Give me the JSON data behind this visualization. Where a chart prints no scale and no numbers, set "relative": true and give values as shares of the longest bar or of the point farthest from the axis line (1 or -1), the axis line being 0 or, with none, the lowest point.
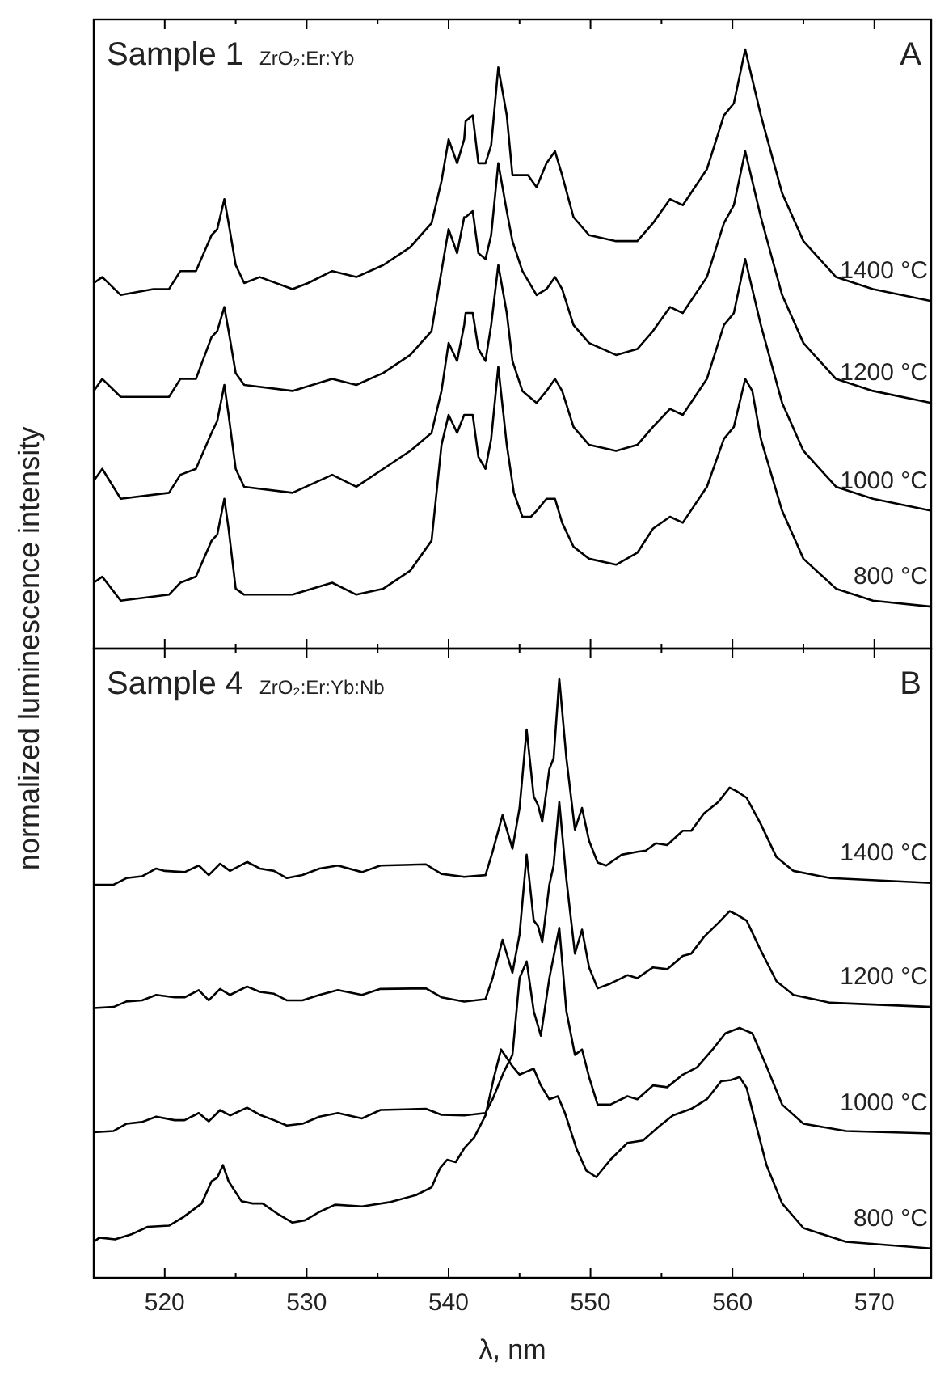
{
  "chart_data": [
    {
      "type": "line",
      "title": "Sample 1",
      "subtitle": "ZrO₂:Er:Yb",
      "ylabel": "normalized luminescence intensity",
      "annotations": [
        "A"
      ],
      "relative": true,
      "xlim": [
        515,
        574
      ],
      "xticks": [
        {
          "value": 515,
          "label": null
        },
        520,
        {
          "value": 525,
          "label": null
        },
        530,
        {
          "value": 535,
          "label": null
        },
        540,
        {
          "value": 545,
          "label": null
        },
        550,
        {
          "value": 555,
          "label": null
        },
        560,
        {
          "value": 565,
          "label": null
        },
        570
      ],
      "tick_labels": false,
      "series": [
        {
          "name": "1400 °C",
          "color": "#000000",
          "x": [
            515.0,
            515.6,
            516.9,
            519.2,
            520.3,
            521.1,
            522.2,
            523.3,
            523.7,
            524.2,
            524.5,
            525.0,
            525.6,
            526.7,
            529.0,
            530.1,
            531.8,
            533.5,
            535.4,
            537.3,
            538.8,
            539.5,
            540.0,
            540.6,
            541.1,
            541.2,
            541.7,
            542.1,
            542.6,
            543.0,
            543.5,
            544.1,
            544.5,
            545.2,
            545.6,
            546.2,
            546.9,
            547.5,
            548.0,
            548.8,
            549.9,
            551.8,
            553.3,
            554.4,
            555.6,
            556.5,
            558.2,
            559.4,
            560.1,
            560.9,
            561.4,
            562.0,
            563.5,
            565.0,
            567.3,
            569.9,
            574.0
          ],
          "values": [
            0.61,
            0.62,
            0.59,
            0.6,
            0.6,
            0.63,
            0.63,
            0.69,
            0.7,
            0.75,
            0.71,
            0.64,
            0.61,
            0.62,
            0.6,
            0.61,
            0.63,
            0.62,
            0.64,
            0.67,
            0.71,
            0.78,
            0.85,
            0.81,
            0.85,
            0.88,
            0.89,
            0.81,
            0.81,
            0.84,
            0.97,
            0.89,
            0.79,
            0.79,
            0.79,
            0.77,
            0.81,
            0.83,
            0.79,
            0.72,
            0.69,
            0.68,
            0.68,
            0.71,
            0.75,
            0.74,
            0.8,
            0.89,
            0.91,
            1.0,
            0.95,
            0.89,
            0.76,
            0.68,
            0.62,
            0.6,
            0.58
          ]
        },
        {
          "name": "1200 °C",
          "color": "#000000",
          "x": [
            515.0,
            515.6,
            516.9,
            520.3,
            521.1,
            522.2,
            523.3,
            523.7,
            524.2,
            524.5,
            525.0,
            525.6,
            529.0,
            531.8,
            533.5,
            535.4,
            537.3,
            538.8,
            539.5,
            540.0,
            540.6,
            541.1,
            541.2,
            541.7,
            542.1,
            542.6,
            543.0,
            543.5,
            544.1,
            544.5,
            545.2,
            546.2,
            546.9,
            547.5,
            548.0,
            548.8,
            549.9,
            551.8,
            553.3,
            554.4,
            555.6,
            556.5,
            558.2,
            559.4,
            560.1,
            560.9,
            561.4,
            562.0,
            563.5,
            565.0,
            567.3,
            569.9,
            574.0
          ],
          "values": [
            0.43,
            0.45,
            0.42,
            0.42,
            0.45,
            0.45,
            0.52,
            0.53,
            0.57,
            0.53,
            0.46,
            0.44,
            0.43,
            0.45,
            0.44,
            0.46,
            0.49,
            0.53,
            0.63,
            0.7,
            0.66,
            0.72,
            0.72,
            0.73,
            0.66,
            0.65,
            0.69,
            0.81,
            0.73,
            0.68,
            0.63,
            0.59,
            0.6,
            0.62,
            0.6,
            0.54,
            0.51,
            0.49,
            0.5,
            0.53,
            0.57,
            0.56,
            0.62,
            0.71,
            0.74,
            0.83,
            0.78,
            0.72,
            0.59,
            0.51,
            0.45,
            0.43,
            0.41
          ]
        },
        {
          "name": "1000 °C",
          "color": "#000000",
          "x": [
            515.0,
            515.6,
            516.9,
            520.3,
            521.1,
            522.2,
            523.3,
            523.7,
            524.2,
            524.5,
            525.0,
            525.6,
            529.0,
            531.8,
            533.5,
            535.4,
            537.3,
            538.8,
            539.5,
            540.0,
            540.6,
            541.1,
            541.2,
            541.7,
            542.1,
            542.6,
            543.0,
            543.5,
            544.1,
            544.5,
            545.2,
            546.2,
            546.9,
            547.5,
            548.0,
            548.8,
            549.9,
            551.8,
            553.3,
            554.4,
            555.6,
            556.5,
            558.2,
            559.4,
            560.1,
            560.9,
            561.4,
            562.0,
            563.5,
            565.0,
            567.3,
            569.9,
            574.0
          ],
          "values": [
            0.28,
            0.3,
            0.25,
            0.26,
            0.29,
            0.3,
            0.36,
            0.38,
            0.44,
            0.39,
            0.3,
            0.27,
            0.26,
            0.29,
            0.27,
            0.3,
            0.33,
            0.36,
            0.43,
            0.51,
            0.48,
            0.54,
            0.56,
            0.56,
            0.5,
            0.48,
            0.54,
            0.64,
            0.56,
            0.48,
            0.43,
            0.41,
            0.43,
            0.45,
            0.43,
            0.37,
            0.34,
            0.33,
            0.34,
            0.37,
            0.4,
            0.39,
            0.45,
            0.54,
            0.56,
            0.65,
            0.6,
            0.54,
            0.41,
            0.33,
            0.27,
            0.25,
            0.23
          ]
        },
        {
          "name": "800 °C",
          "color": "#000000",
          "x": [
            515.0,
            515.6,
            516.9,
            520.3,
            521.1,
            522.2,
            523.3,
            523.7,
            524.2,
            524.5,
            525.0,
            525.6,
            529.0,
            531.8,
            533.5,
            535.4,
            537.3,
            538.8,
            539.5,
            540.0,
            540.6,
            541.1,
            541.7,
            542.1,
            542.6,
            543.0,
            543.5,
            544.1,
            544.6,
            545.2,
            545.8,
            546.2,
            546.9,
            547.5,
            548.0,
            548.8,
            549.9,
            551.8,
            553.3,
            554.4,
            555.6,
            556.5,
            558.2,
            559.4,
            560.1,
            560.9,
            561.4,
            562.0,
            563.5,
            565.0,
            567.3,
            569.9,
            574.0
          ],
          "values": [
            0.11,
            0.12,
            0.08,
            0.09,
            0.11,
            0.12,
            0.18,
            0.19,
            0.25,
            0.2,
            0.1,
            0.09,
            0.09,
            0.11,
            0.09,
            0.1,
            0.13,
            0.18,
            0.34,
            0.39,
            0.36,
            0.39,
            0.39,
            0.32,
            0.3,
            0.35,
            0.47,
            0.34,
            0.26,
            0.22,
            0.22,
            0.23,
            0.25,
            0.25,
            0.21,
            0.17,
            0.15,
            0.14,
            0.16,
            0.2,
            0.22,
            0.21,
            0.27,
            0.35,
            0.37,
            0.45,
            0.43,
            0.35,
            0.23,
            0.15,
            0.1,
            0.08,
            0.07
          ]
        }
      ]
    },
    {
      "type": "line",
      "title": "Sample 4",
      "subtitle": "ZrO₂:Er:Yb:Nb",
      "xlabel": "λ, nm",
      "annotations": [
        "B"
      ],
      "relative": true,
      "xlim": [
        515,
        574
      ],
      "xticks": [
        {
          "value": 515,
          "label": null
        },
        520,
        {
          "value": 525,
          "label": null
        },
        530,
        {
          "value": 535,
          "label": null
        },
        540,
        {
          "value": 545,
          "label": null
        },
        550,
        {
          "value": 555,
          "label": null
        },
        560,
        {
          "value": 565,
          "label": null
        },
        570
      ],
      "tick_labels": "x",
      "series": [
        {
          "name": "1400 °C",
          "color": "#000000",
          "x": [
            515.0,
            516.4,
            517.3,
            518.4,
            519.4,
            520.0,
            521.4,
            522.4,
            523.1,
            523.9,
            524.6,
            525.8,
            526.7,
            527.7,
            528.6,
            529.7,
            530.9,
            532.2,
            533.9,
            535.2,
            538.4,
            539.5,
            541.1,
            542.6,
            543.1,
            543.8,
            544.5,
            545.0,
            545.5,
            546.0,
            546.3,
            546.6,
            547.1,
            547.4,
            547.8,
            548.3,
            548.9,
            549.4,
            549.9,
            550.5,
            551.1,
            552.2,
            553.3,
            553.9,
            554.6,
            555.4,
            556.5,
            557.1,
            558.0,
            559.0,
            559.8,
            560.3,
            561.0,
            562.0,
            563.1,
            564.3,
            566.9,
            574.0
          ],
          "values": [
            0.656,
            0.656,
            0.667,
            0.67,
            0.683,
            0.679,
            0.677,
            0.688,
            0.672,
            0.691,
            0.679,
            0.694,
            0.683,
            0.679,
            0.667,
            0.672,
            0.683,
            0.688,
            0.677,
            0.688,
            0.69,
            0.674,
            0.669,
            0.672,
            0.711,
            0.772,
            0.716,
            0.784,
            0.915,
            0.803,
            0.789,
            0.761,
            0.849,
            0.867,
            1.0,
            0.867,
            0.748,
            0.784,
            0.729,
            0.693,
            0.688,
            0.706,
            0.711,
            0.713,
            0.725,
            0.722,
            0.746,
            0.746,
            0.775,
            0.794,
            0.818,
            0.812,
            0.801,
            0.757,
            0.702,
            0.679,
            0.667,
            0.659
          ]
        },
        {
          "name": "1200 °C",
          "color": "#000000",
          "x": [
            515.0,
            516.4,
            517.3,
            518.4,
            519.4,
            520.7,
            521.4,
            522.4,
            523.1,
            523.9,
            524.6,
            525.8,
            526.7,
            527.7,
            528.6,
            529.7,
            530.9,
            532.2,
            533.9,
            535.2,
            538.4,
            539.5,
            541.1,
            542.6,
            543.1,
            543.8,
            544.5,
            545.0,
            545.5,
            546.0,
            546.3,
            546.6,
            547.1,
            547.4,
            547.8,
            548.3,
            548.9,
            549.4,
            549.9,
            550.5,
            551.4,
            552.6,
            553.3,
            554.4,
            555.4,
            556.5,
            557.1,
            558.0,
            559.0,
            559.8,
            560.3,
            561.0,
            562.0,
            563.1,
            564.3,
            566.9,
            574.0
          ],
          "values": [
            0.45,
            0.452,
            0.461,
            0.463,
            0.472,
            0.468,
            0.468,
            0.48,
            0.463,
            0.482,
            0.472,
            0.486,
            0.477,
            0.474,
            0.463,
            0.463,
            0.472,
            0.48,
            0.472,
            0.482,
            0.483,
            0.468,
            0.461,
            0.465,
            0.5,
            0.564,
            0.509,
            0.573,
            0.706,
            0.596,
            0.587,
            0.56,
            0.656,
            0.688,
            0.794,
            0.665,
            0.541,
            0.581,
            0.518,
            0.483,
            0.491,
            0.505,
            0.5,
            0.518,
            0.515,
            0.537,
            0.541,
            0.569,
            0.592,
            0.612,
            0.606,
            0.596,
            0.546,
            0.495,
            0.472,
            0.459,
            0.452
          ]
        },
        {
          "name": "1000 °C",
          "color": "#000000",
          "x": [
            515.0,
            516.4,
            517.3,
            518.4,
            519.4,
            520.7,
            521.4,
            522.4,
            523.1,
            523.9,
            524.6,
            525.8,
            526.7,
            527.7,
            528.6,
            529.7,
            530.9,
            532.2,
            533.9,
            535.2,
            538.4,
            539.5,
            541.1,
            542.6,
            543.1,
            543.9,
            544.5,
            545.0,
            545.5,
            546.0,
            546.5,
            547.1,
            547.8,
            548.3,
            548.9,
            549.4,
            549.9,
            550.5,
            551.4,
            552.6,
            553.3,
            554.4,
            555.4,
            556.5,
            557.5,
            558.6,
            559.5,
            560.5,
            561.4,
            562.4,
            563.5,
            565.0,
            568.0,
            574.0
          ],
          "values": [
            0.243,
            0.245,
            0.257,
            0.26,
            0.269,
            0.263,
            0.263,
            0.275,
            0.261,
            0.28,
            0.271,
            0.284,
            0.272,
            0.263,
            0.254,
            0.257,
            0.269,
            0.275,
            0.266,
            0.28,
            0.282,
            0.272,
            0.271,
            0.275,
            0.298,
            0.344,
            0.372,
            0.5,
            0.528,
            0.445,
            0.404,
            0.5,
            0.584,
            0.445,
            0.372,
            0.381,
            0.335,
            0.289,
            0.289,
            0.303,
            0.298,
            0.321,
            0.318,
            0.339,
            0.351,
            0.381,
            0.408,
            0.417,
            0.408,
            0.353,
            0.289,
            0.257,
            0.245,
            0.241
          ]
        },
        {
          "name": "800 °C",
          "color": "#000000",
          "x": [
            515.0,
            515.4,
            516.5,
            517.7,
            518.8,
            520.3,
            521.3,
            522.6,
            523.3,
            523.7,
            524.1,
            524.5,
            525.4,
            526.2,
            526.9,
            528.0,
            529.0,
            529.9,
            530.9,
            532.0,
            533.9,
            535.8,
            537.7,
            538.8,
            539.4,
            539.9,
            540.5,
            541.1,
            541.8,
            542.6,
            543.2,
            543.7,
            544.5,
            545.0,
            546.0,
            546.5,
            547.1,
            547.7,
            548.2,
            549.0,
            549.7,
            550.4,
            551.4,
            552.6,
            553.7,
            554.8,
            555.8,
            557.1,
            558.2,
            559.2,
            559.9,
            560.5,
            561.0,
            561.6,
            562.4,
            563.5,
            565.0,
            568.0,
            574.0
          ],
          "values": [
            0.06,
            0.067,
            0.064,
            0.073,
            0.085,
            0.087,
            0.101,
            0.124,
            0.161,
            0.167,
            0.188,
            0.161,
            0.128,
            0.124,
            0.124,
            0.106,
            0.092,
            0.096,
            0.11,
            0.122,
            0.119,
            0.126,
            0.138,
            0.151,
            0.183,
            0.197,
            0.193,
            0.216,
            0.234,
            0.271,
            0.335,
            0.381,
            0.353,
            0.339,
            0.349,
            0.321,
            0.298,
            0.303,
            0.275,
            0.216,
            0.179,
            0.168,
            0.197,
            0.225,
            0.229,
            0.252,
            0.271,
            0.282,
            0.298,
            0.328,
            0.33,
            0.335,
            0.317,
            0.261,
            0.188,
            0.124,
            0.083,
            0.06,
            0.049
          ]
        }
      ]
    }
  ]
}
